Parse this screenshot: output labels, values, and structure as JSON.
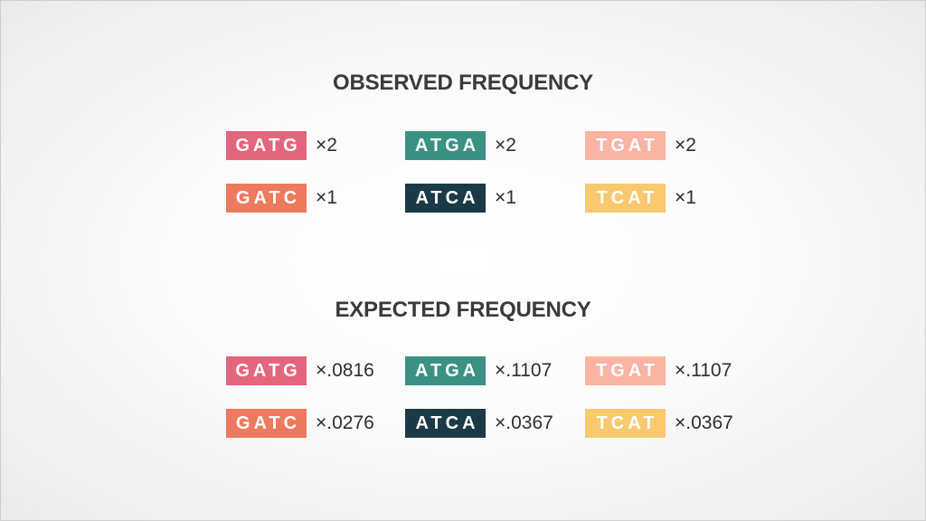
{
  "observed": {
    "title": "OBSERVED FREQUENCY",
    "rows": [
      [
        {
          "seq": "GATG",
          "value": "×2",
          "color": "#e2667e"
        },
        {
          "seq": "ATGA",
          "value": "×2",
          "color": "#3a9184"
        },
        {
          "seq": "TGAT",
          "value": "×2",
          "color": "#f9b4a3"
        }
      ],
      [
        {
          "seq": "GATC",
          "value": "×1",
          "color": "#ec7a5e"
        },
        {
          "seq": "ATCA",
          "value": "×1",
          "color": "#1b3a47"
        },
        {
          "seq": "TCAT",
          "value": "×1",
          "color": "#f8c96f"
        }
      ]
    ]
  },
  "expected": {
    "title": "EXPECTED FREQUENCY",
    "rows": [
      [
        {
          "seq": "GATG",
          "value": "×.0816",
          "color": "#e2667e"
        },
        {
          "seq": "ATGA",
          "value": "×.1107",
          "color": "#3a9184"
        },
        {
          "seq": "TGAT",
          "value": "×.1107",
          "color": "#f9b4a3"
        }
      ],
      [
        {
          "seq": "GATC",
          "value": "×.0276",
          "color": "#ec7a5e"
        },
        {
          "seq": "ATCA",
          "value": "×.0367",
          "color": "#1b3a47"
        },
        {
          "seq": "TCAT",
          "value": "×.0367",
          "color": "#f8c96f"
        }
      ]
    ]
  }
}
